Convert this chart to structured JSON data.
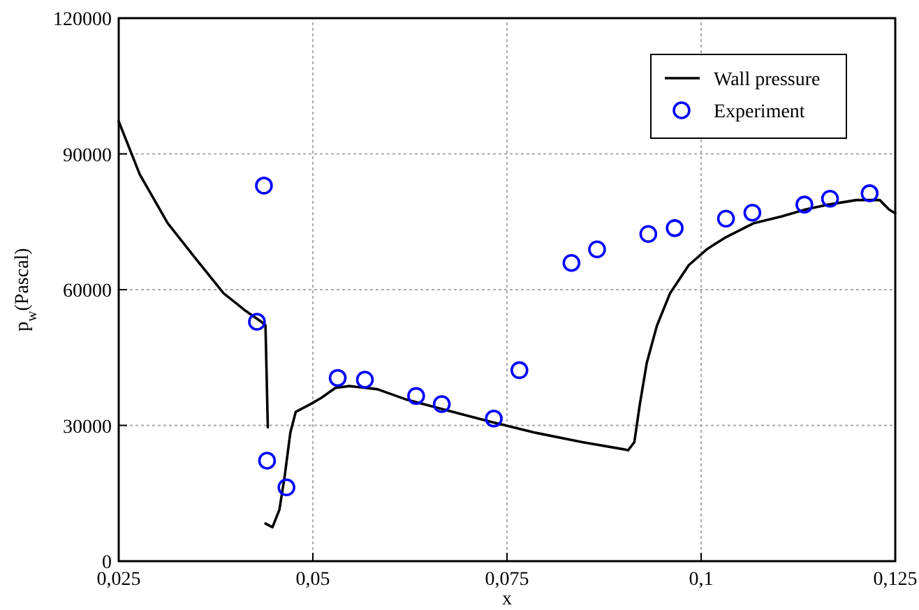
{
  "chart_data": {
    "type": "line",
    "xlabel": "x",
    "ylabel": "p$_{w}$(Pascal)",
    "xlim": [
      0.025,
      0.125
    ],
    "ylim": [
      0,
      120000
    ],
    "xticks": [
      {
        "value": 0.025,
        "label": "0,025"
      },
      {
        "value": 0.05,
        "label": "0,05"
      },
      {
        "value": 0.075,
        "label": "0,075"
      },
      {
        "value": 0.1,
        "label": "0,1"
      },
      {
        "value": 0.125,
        "label": "0,125"
      }
    ],
    "yticks": [
      0,
      30000,
      60000,
      90000,
      120000
    ],
    "grid": true,
    "legend": "top right",
    "series": [
      {
        "name": "Wall pressure",
        "color": "#000000",
        "marker": "none",
        "line_style": "solid",
        "x": [
          0.025,
          0.0277,
          0.0313,
          0.0349,
          0.0385,
          0.0412,
          0.0432,
          0.0439,
          0.0442,
          0.0441,
          0.0439,
          0.0448,
          0.0457,
          0.0464,
          0.0471,
          0.0478,
          0.0496,
          0.0511,
          0.0529,
          0.0547,
          0.0583,
          0.0619,
          0.0667,
          0.0727,
          0.0786,
          0.0847,
          0.0901,
          0.0906,
          0.0914,
          0.0921,
          0.093,
          0.0943,
          0.096,
          0.0984,
          0.1008,
          0.1032,
          0.1068,
          0.1104,
          0.1134,
          0.1164,
          0.12,
          0.123,
          0.1242,
          0.125
        ],
        "values": [
          97200,
          85500,
          74700,
          66900,
          59200,
          55500,
          53100,
          52100,
          29600,
          null,
          8300,
          7500,
          11400,
          19100,
          28400,
          33000,
          34600,
          36100,
          38300,
          38700,
          38000,
          35800,
          33600,
          30900,
          28400,
          26300,
          24700,
          24500,
          26300,
          34600,
          43800,
          52000,
          59200,
          65400,
          69000,
          71600,
          74700,
          76200,
          77700,
          78800,
          79800,
          79800,
          77700,
          76900
        ]
      },
      {
        "name": "Experiment",
        "type": "scatter",
        "color": "#0000ff",
        "marker": "circle",
        "x": [
          0.0428,
          0.0437,
          0.0441,
          0.0466,
          0.0532,
          0.0567,
          0.0633,
          0.0666,
          0.0733,
          0.0766,
          0.0833,
          0.0866,
          0.0932,
          0.0966,
          0.1032,
          0.1066,
          0.1133,
          0.1166,
          0.1217
        ],
        "values": [
          52900,
          83000,
          22200,
          16300,
          40500,
          40100,
          36500,
          34700,
          31500,
          42200,
          65900,
          68900,
          72300,
          73600,
          75700,
          77000,
          78800,
          80100,
          81300
        ]
      }
    ]
  }
}
